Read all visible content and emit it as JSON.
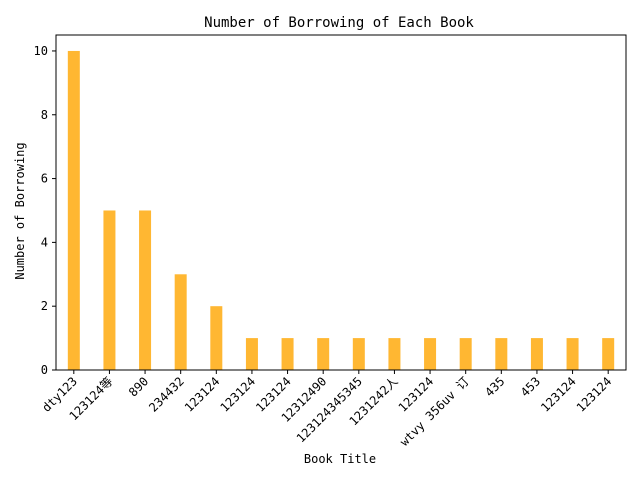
{
  "chart_data": {
    "type": "bar",
    "title": "Number of Borrowing of Each Book",
    "xlabel": "Book Title",
    "ylabel": "Number of Borrowing",
    "categories": [
      "dty123",
      "123124等",
      "890",
      "234432",
      "123124",
      "123124",
      "123124",
      "12312490",
      "12312434534​5",
      "1231242人",
      "123124",
      "wtvy 356uv 订",
      "435",
      "453",
      "123124",
      "123124"
    ],
    "values": [
      10,
      5,
      5,
      3,
      2,
      1,
      1,
      1,
      1,
      1,
      1,
      1,
      1,
      1,
      1,
      1
    ],
    "ylim": [
      0,
      10.5
    ],
    "yticks": [
      0,
      2,
      4,
      6,
      8,
      10
    ],
    "bar_color": "#FFB732",
    "grid": false,
    "legend": "none"
  }
}
